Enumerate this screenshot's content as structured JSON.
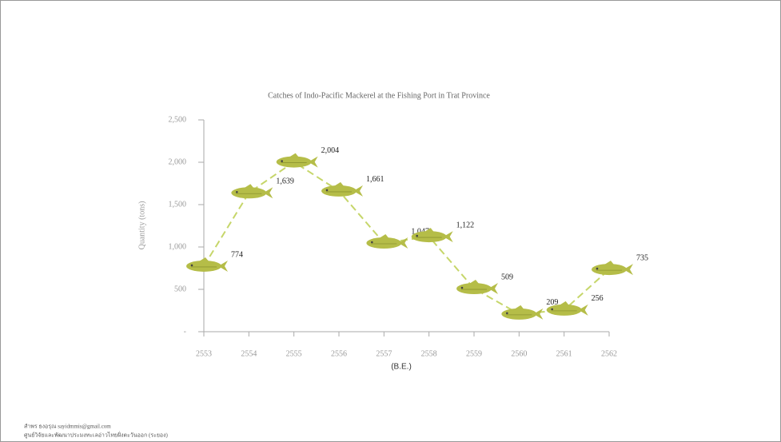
{
  "chart_data": {
    "type": "line",
    "title": "Catches of Indo-Pacific Mackerel at the Fishing Port in Trat Province",
    "y_label": "Quantity  (tons)",
    "x_label": "(B.E.)",
    "categories": [
      "2553",
      "2554",
      "2555",
      "2556",
      "2557",
      "2558",
      "2559",
      "2560",
      "2561",
      "2562"
    ],
    "values": [
      774,
      1639,
      2004,
      1661,
      1047,
      1122,
      509,
      209,
      256,
      735
    ],
    "value_labels": [
      "774",
      "1,639",
      "2,004",
      "1,661",
      "1,047",
      "1,122",
      "509",
      "209",
      "256",
      "735"
    ],
    "color": "#c6d66a",
    "marker_color": "#b5bd48",
    "ylim": [
      0,
      2500
    ],
    "yticks": [
      {
        "value": 0,
        "label": "-"
      },
      500,
      {
        "value": 1000,
        "label": "1,000"
      },
      {
        "value": 1500,
        "label": "1,500"
      },
      {
        "value": 2000,
        "label": "2,000"
      },
      {
        "value": 2500,
        "label": "2,500"
      }
    ],
    "source": [
      "สำพร ธงอรุณ  sayidmmis@gmail.com",
      "ศูนย์วิจัยและพัฒนาประมงทะเลอ่าวไทยฝั่งตะวันออก (ระยอง)"
    ]
  }
}
